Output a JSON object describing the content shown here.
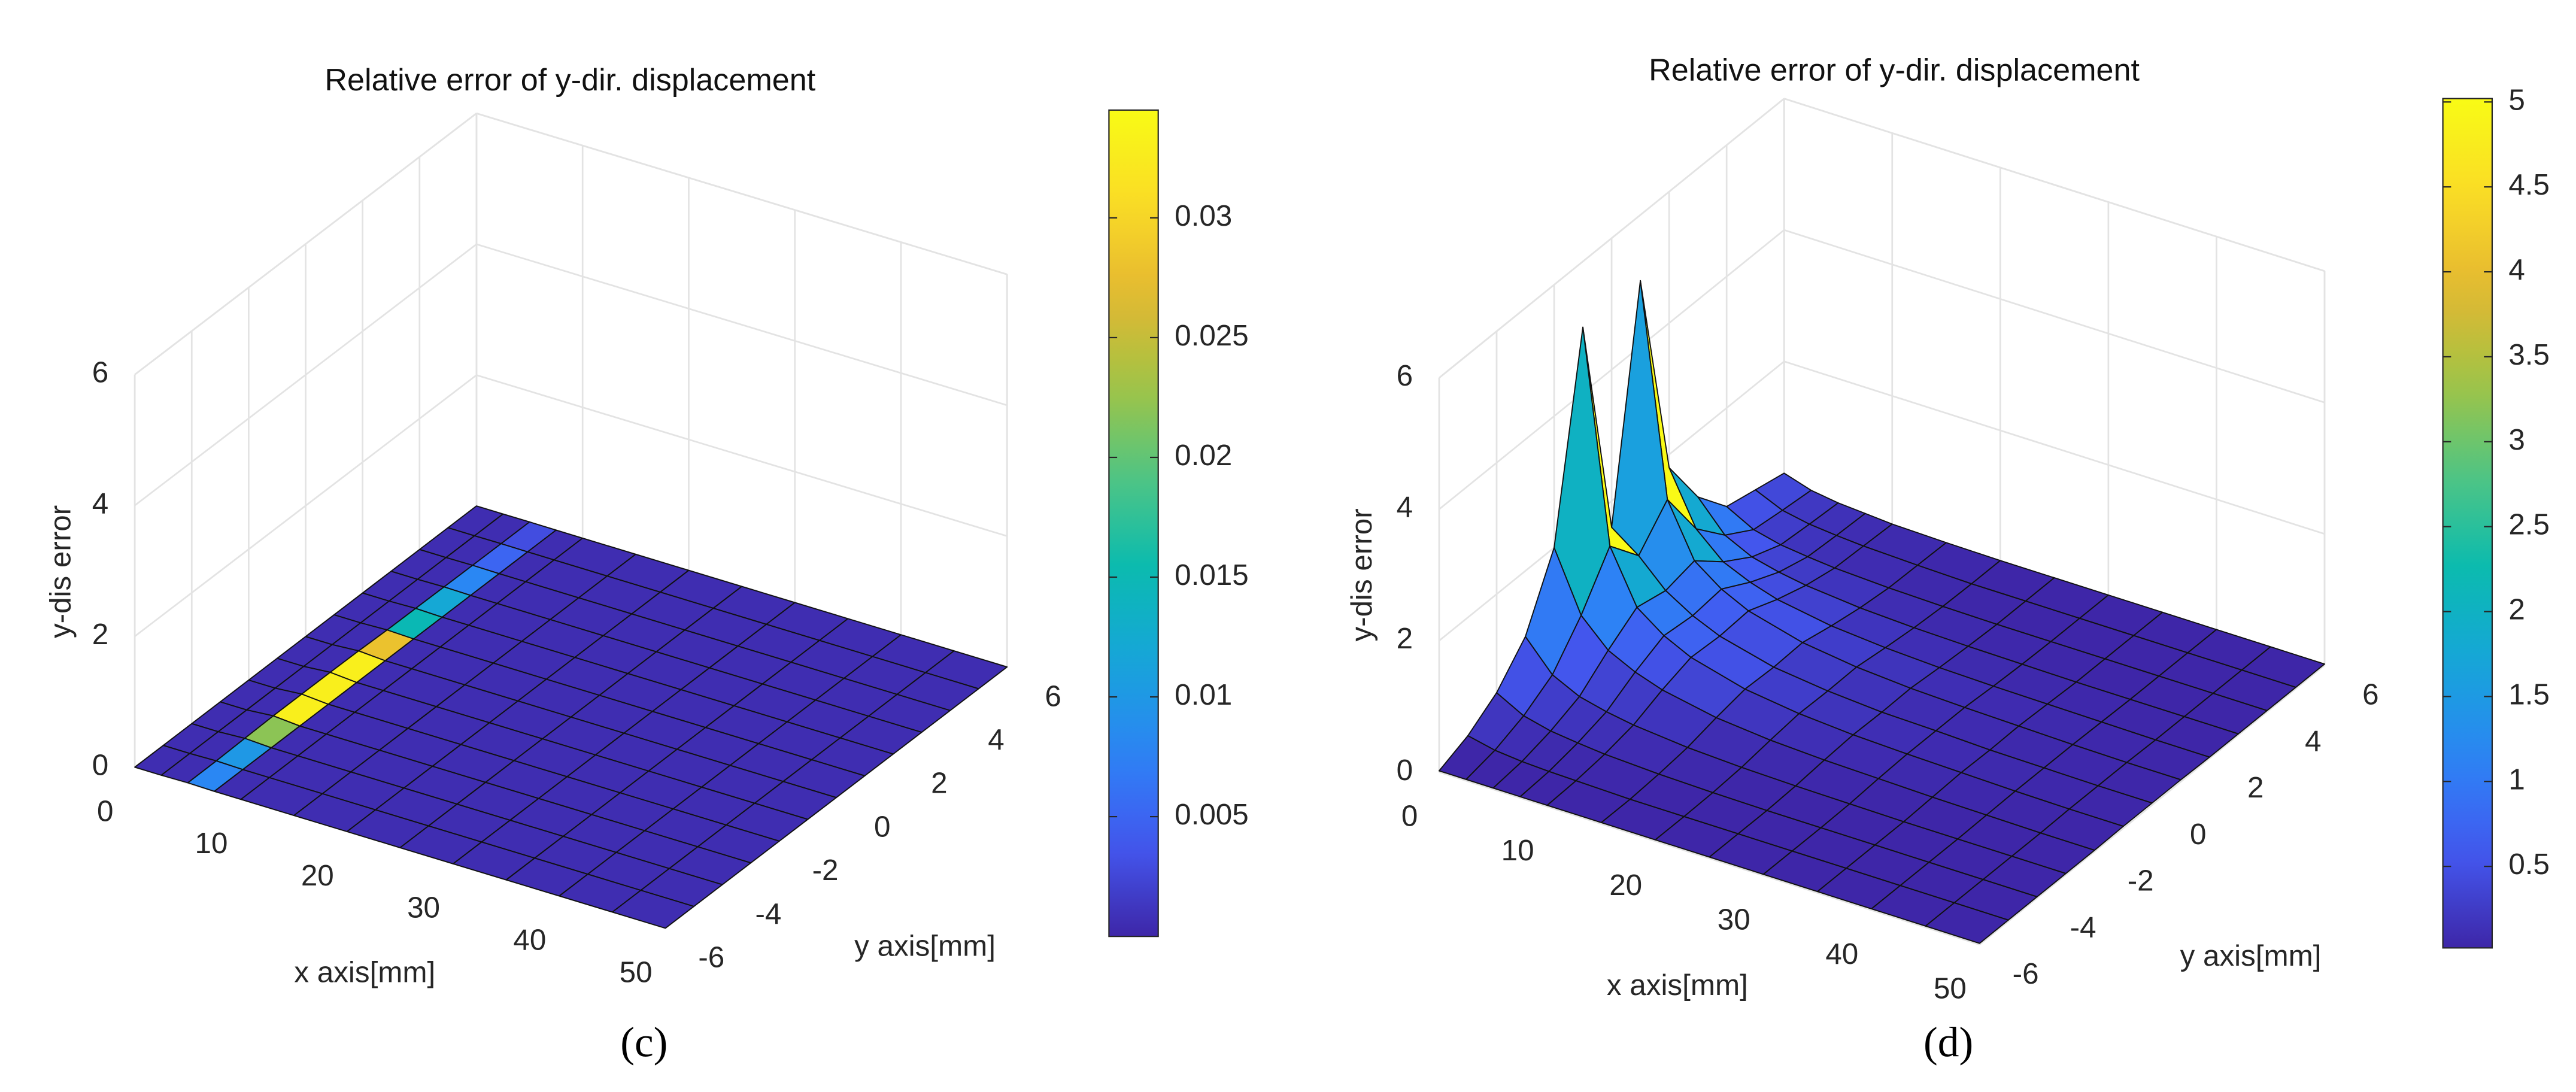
{
  "chart_data": [
    {
      "type": "surface",
      "title": "Relative error of y-dir. displacement",
      "xlabel": "x axis[mm]",
      "ylabel": "y axis[mm]",
      "zlabel": "y-dis error",
      "panel_label": "(c)",
      "x": [
        0,
        2.5,
        5,
        7.5,
        10,
        15,
        20,
        25,
        30,
        35,
        40,
        45,
        50
      ],
      "y": [
        -6,
        -5,
        -4,
        -3,
        -2,
        -1,
        0,
        1,
        2,
        3,
        4,
        5,
        6
      ],
      "z": [
        [
          0.0005,
          0.0005,
          0.008,
          0.0005,
          0.0005,
          0.0005,
          0.0005,
          0.0005,
          0.0005,
          0.0005,
          0.0005,
          0.0005,
          0.0005
        ],
        [
          0.0005,
          0.0005,
          0.01,
          0.0005,
          0.0005,
          0.0005,
          0.0005,
          0.0005,
          0.0005,
          0.0005,
          0.0005,
          0.0005,
          0.0005
        ],
        [
          0.0005,
          0.0005,
          0.022,
          0.0005,
          0.0005,
          0.0005,
          0.0005,
          0.0005,
          0.0005,
          0.0005,
          0.0005,
          0.0005,
          0.0005
        ],
        [
          0.0005,
          0.0005,
          0.033,
          0.0005,
          0.0005,
          0.0005,
          0.0005,
          0.0005,
          0.0005,
          0.0005,
          0.0005,
          0.0005,
          0.0005
        ],
        [
          0.0005,
          0.0005,
          0.033,
          0.0005,
          0.0005,
          0.0005,
          0.0005,
          0.0005,
          0.0005,
          0.0005,
          0.0005,
          0.0005,
          0.0005
        ],
        [
          0.0005,
          0.0005,
          0.033,
          0.0005,
          0.0005,
          0.0005,
          0.0005,
          0.0005,
          0.0005,
          0.0005,
          0.0005,
          0.0005,
          0.0005
        ],
        [
          0.0005,
          0.0005,
          0.028,
          0.0005,
          0.0005,
          0.0005,
          0.0005,
          0.0005,
          0.0005,
          0.0005,
          0.0005,
          0.0005,
          0.0005
        ],
        [
          0.0005,
          0.0005,
          0.015,
          0.0005,
          0.0005,
          0.0005,
          0.0005,
          0.0005,
          0.0005,
          0.0005,
          0.0005,
          0.0005,
          0.0005
        ],
        [
          0.0005,
          0.0005,
          0.012,
          0.0005,
          0.0005,
          0.0005,
          0.0005,
          0.0005,
          0.0005,
          0.0005,
          0.0005,
          0.0005,
          0.0005
        ],
        [
          0.0005,
          0.0005,
          0.008,
          0.0005,
          0.0005,
          0.0005,
          0.0005,
          0.0005,
          0.0005,
          0.0005,
          0.0005,
          0.0005,
          0.0005
        ],
        [
          0.0005,
          0.0005,
          0.005,
          0.0005,
          0.0005,
          0.0005,
          0.0005,
          0.0005,
          0.0005,
          0.0005,
          0.0005,
          0.0005,
          0.0005
        ],
        [
          0.0005,
          0.0005,
          0.003,
          0.0005,
          0.0005,
          0.0005,
          0.0005,
          0.0005,
          0.0005,
          0.0005,
          0.0005,
          0.0005,
          0.0005
        ],
        [
          0.0005,
          0.0005,
          0.002,
          0.0005,
          0.0005,
          0.0005,
          0.0005,
          0.0005,
          0.0005,
          0.0005,
          0.0005,
          0.0005,
          0.0005
        ]
      ],
      "xlim": [
        0,
        50
      ],
      "ylim": [
        -6,
        6
      ],
      "zlim": [
        0,
        6
      ],
      "xticks": [
        0,
        10,
        20,
        30,
        40,
        50
      ],
      "yticks": [
        -6,
        -4,
        -2,
        0,
        2,
        4,
        6
      ],
      "zticks": [
        0,
        2,
        4,
        6
      ],
      "clim": [
        0,
        0.0345
      ],
      "cticks": [
        0.005,
        0.01,
        0.015,
        0.02,
        0.025,
        0.03
      ],
      "colormap": "parula",
      "grid": true
    },
    {
      "type": "surface",
      "title": "Relative error of y-dir. displacement",
      "xlabel": "x axis[mm]",
      "ylabel": "y axis[mm]",
      "zlabel": "y-dis error",
      "panel_label": "(d)",
      "x": [
        0,
        2.5,
        5,
        7.5,
        10,
        15,
        20,
        25,
        30,
        35,
        40,
        45,
        50
      ],
      "y": [
        -6,
        -5,
        -4,
        -3,
        -2,
        -1,
        0,
        1,
        2,
        3,
        4,
        5,
        6
      ],
      "z": [
        [
          0.02,
          0.02,
          0.02,
          0.02,
          0.02,
          0.02,
          0.02,
          0.02,
          0.02,
          0.02,
          0.02,
          0.02,
          0.02
        ],
        [
          0.2,
          0.11,
          0.07,
          0.05,
          0.04,
          0.02,
          0.02,
          0.02,
          0.02,
          0.02,
          0.02,
          0.02,
          0.02
        ],
        [
          0.5,
          0.28,
          0.18,
          0.13,
          0.09,
          0.05,
          0.03,
          0.02,
          0.02,
          0.02,
          0.02,
          0.02,
          0.02
        ],
        [
          1,
          0.55,
          0.35,
          0.25,
          0.18,
          0.1,
          0.06,
          0.04,
          0.03,
          0.02,
          0.02,
          0.02,
          0.02
        ],
        [
          2,
          1.1,
          0.7,
          0.5,
          0.36,
          0.2,
          0.12,
          0.08,
          0.06,
          0.04,
          0.03,
          0.02,
          0.02
        ],
        [
          5,
          1.8,
          1,
          0.7,
          0.5,
          0.28,
          0.17,
          0.11,
          0.08,
          0.06,
          0.04,
          0.03,
          0.03
        ],
        [
          1.6,
          1.3,
          0.9,
          0.65,
          0.47,
          0.26,
          0.16,
          0.1,
          0.08,
          0.05,
          0.04,
          0.03,
          0.03
        ],
        [
          5,
          1.8,
          1,
          0.7,
          0.5,
          0.28,
          0.17,
          0.11,
          0.08,
          0.06,
          0.04,
          0.03,
          0.03
        ],
        [
          1.8,
          1,
          0.63,
          0.45,
          0.32,
          0.18,
          0.11,
          0.07,
          0.05,
          0.04,
          0.03,
          0.02,
          0.02
        ],
        [
          1,
          0.55,
          0.35,
          0.25,
          0.18,
          0.1,
          0.06,
          0.04,
          0.03,
          0.02,
          0.02,
          0.02,
          0.02
        ],
        [
          0.5,
          0.28,
          0.18,
          0.13,
          0.09,
          0.05,
          0.03,
          0.02,
          0.02,
          0.02,
          0.02,
          0.02,
          0.02
        ],
        [
          0.4,
          0.22,
          0.14,
          0.1,
          0.07,
          0.04,
          0.02,
          0.02,
          0.02,
          0.02,
          0.02,
          0.02,
          0.02
        ],
        [
          0.3,
          0.17,
          0.11,
          0.08,
          0.05,
          0.03,
          0.02,
          0.02,
          0.02,
          0.02,
          0.02,
          0.02,
          0.02
        ]
      ],
      "xlim": [
        0,
        50
      ],
      "ylim": [
        -6,
        6
      ],
      "zlim": [
        0,
        6
      ],
      "xticks": [
        0,
        10,
        20,
        30,
        40,
        50
      ],
      "yticks": [
        -6,
        -4,
        -2,
        0,
        2,
        4,
        6
      ],
      "zticks": [
        0,
        2,
        4,
        6
      ],
      "clim": [
        0.02,
        5.02
      ],
      "cticks": [
        0.5,
        1,
        1.5,
        2,
        2.5,
        3,
        3.5,
        4,
        4.5,
        5
      ],
      "colormap": "parula",
      "grid": true
    }
  ]
}
